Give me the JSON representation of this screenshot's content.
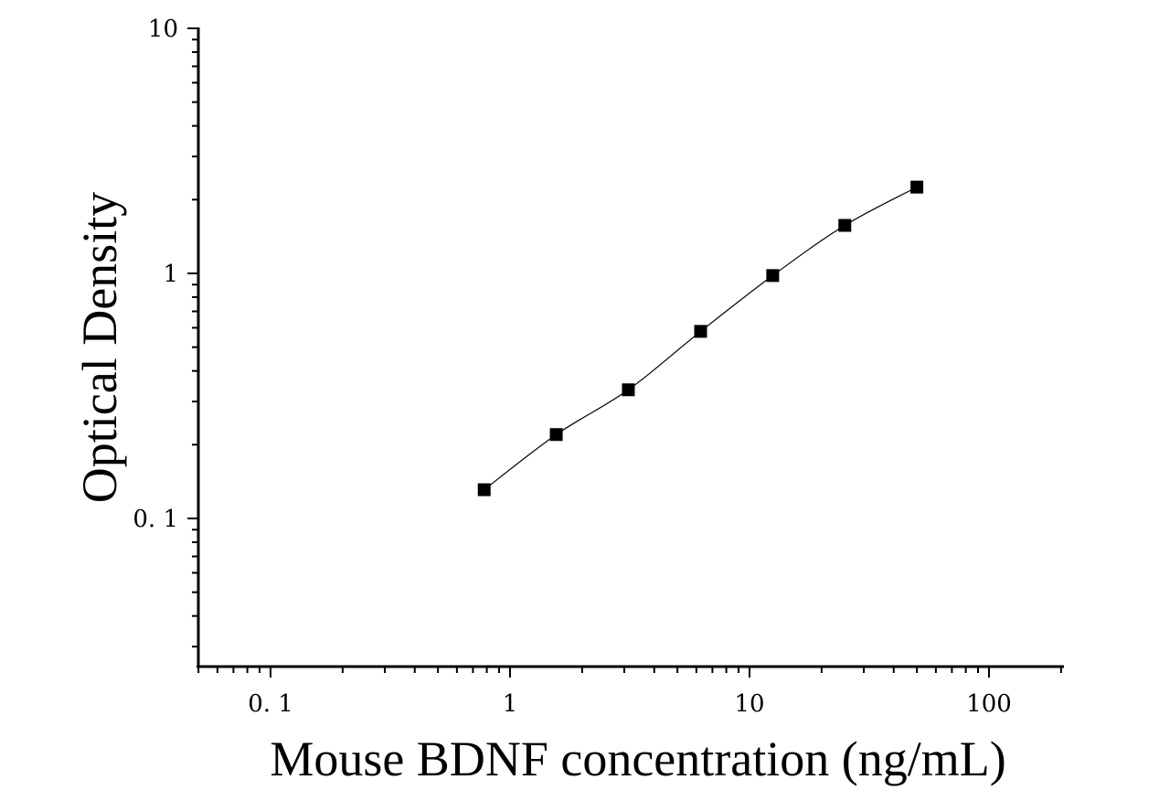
{
  "chart_data": {
    "type": "scatter",
    "title": "",
    "xlabel": "Mouse BDNF concentration (ng/mL)",
    "ylabel": "Optical Density",
    "x_scale": "log",
    "y_scale": "log",
    "xlim": [
      0.05,
      200
    ],
    "ylim": [
      0.025,
      10
    ],
    "x_ticks": [
      0.1,
      1,
      10,
      100
    ],
    "x_tick_labels": [
      "0. 1",
      "1",
      "10",
      "100"
    ],
    "y_ticks": [
      0.1,
      1,
      10
    ],
    "y_tick_labels": [
      "0. 1",
      "1",
      "10"
    ],
    "grid": false,
    "series": [
      {
        "x": [
          0.78,
          1.56,
          3.12,
          6.25,
          12.5,
          25,
          50
        ],
        "y": [
          0.131,
          0.22,
          0.335,
          0.58,
          0.98,
          1.57,
          2.25
        ],
        "marker": "square",
        "color": "#000000",
        "fit_line": true
      }
    ]
  }
}
